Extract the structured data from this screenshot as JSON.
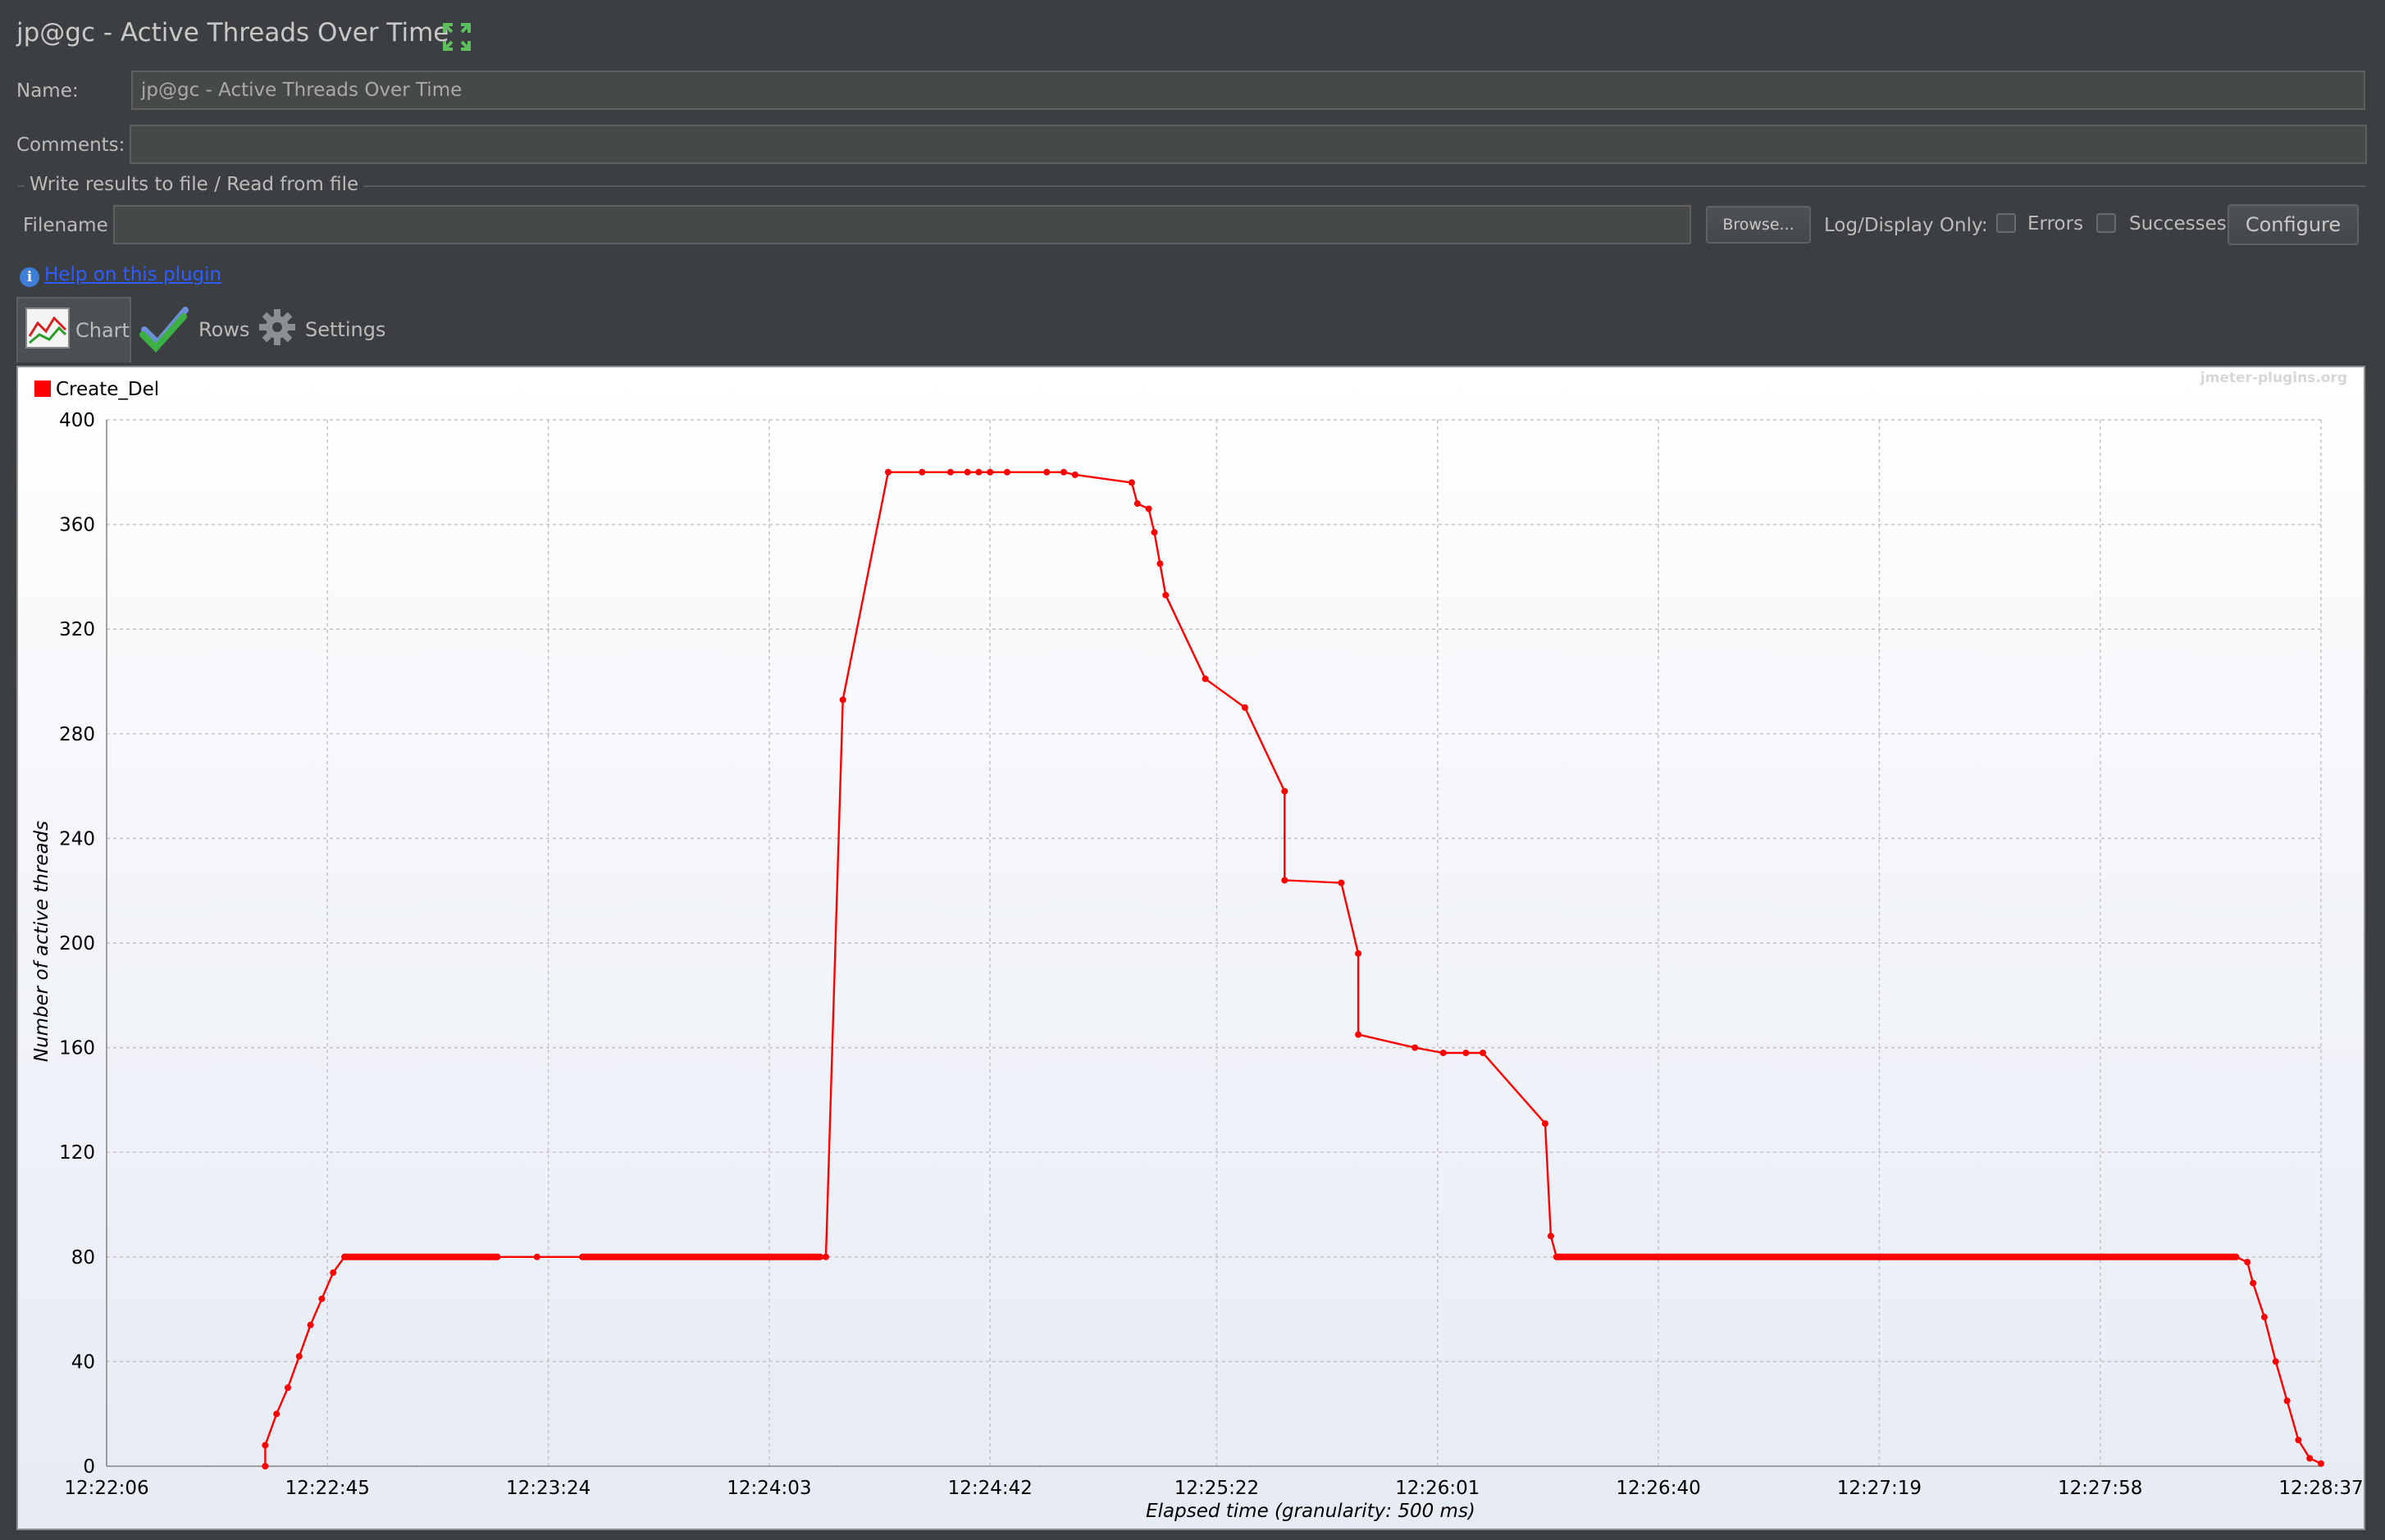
{
  "header": {
    "title": "jp@gc - Active Threads Over Time",
    "maximize_icon": "expand-arrows-icon"
  },
  "form": {
    "name_label": "Name:",
    "name_value": "jp@gc - Active Threads Over Time",
    "comments_label": "Comments:",
    "comments_value": ""
  },
  "file_section": {
    "legend": "Write results to file / Read from file",
    "filename_label": "Filename",
    "filename_value": "",
    "browse_label": "Browse...",
    "log_display_label": "Log/Display Only:",
    "errors_label": "Errors",
    "errors_checked": false,
    "successes_label": "Successes",
    "successes_checked": false,
    "configure_label": "Configure"
  },
  "help": {
    "link_text": "Help on this plugin",
    "icon": "info-icon"
  },
  "tabs": [
    {
      "label": "Chart",
      "icon": "chart-icon",
      "active": true
    },
    {
      "label": "Rows",
      "icon": "checkmarks-icon",
      "active": false
    },
    {
      "label": "Settings",
      "icon": "gear-icon",
      "active": false
    }
  ],
  "chart": {
    "watermark": "jmeter-plugins.org",
    "legend": [
      {
        "name": "Create_Del",
        "color": "#ff0000"
      }
    ],
    "x_ticks": [
      "12:22:06",
      "12:22:45",
      "12:23:24",
      "12:24:03",
      "12:24:42",
      "12:25:22",
      "12:26:01",
      "12:26:40",
      "12:27:19",
      "12:27:58",
      "12:28:37"
    ],
    "y_ticks": [
      "0",
      "40",
      "80",
      "120",
      "160",
      "200",
      "240",
      "280",
      "320",
      "360",
      "400"
    ]
  },
  "chart_data": {
    "type": "line",
    "xlabel": "Elapsed time (granularity: 500 ms)",
    "ylabel": "Number of active threads",
    "ylim": [
      0,
      400
    ],
    "xlim": [
      "12:22:06",
      "12:28:37"
    ],
    "grid": true,
    "legend_position": "top-left",
    "series": [
      {
        "name": "Create_Del",
        "color": "#ff0000",
        "points": [
          [
            "12:22:34",
            0
          ],
          [
            "12:22:34",
            8
          ],
          [
            "12:22:36",
            20
          ],
          [
            "12:22:38",
            30
          ],
          [
            "12:22:40",
            42
          ],
          [
            "12:22:42",
            54
          ],
          [
            "12:22:44",
            64
          ],
          [
            "12:22:46",
            74
          ],
          [
            "12:22:48",
            80
          ],
          [
            "12:23:15",
            80
          ],
          [
            "12:23:22",
            80
          ],
          [
            "12:23:30",
            80
          ],
          [
            "12:24:12",
            80
          ],
          [
            "12:24:13",
            80
          ],
          [
            "12:24:16",
            293
          ],
          [
            "12:24:24",
            380
          ],
          [
            "12:24:30",
            380
          ],
          [
            "12:24:35",
            380
          ],
          [
            "12:24:38",
            380
          ],
          [
            "12:24:40",
            380
          ],
          [
            "12:24:42",
            380
          ],
          [
            "12:24:45",
            380
          ],
          [
            "12:24:52",
            380
          ],
          [
            "12:24:55",
            380
          ],
          [
            "12:24:57",
            379
          ],
          [
            "12:25:07",
            376
          ],
          [
            "12:25:08",
            368
          ],
          [
            "12:25:10",
            366
          ],
          [
            "12:25:11",
            357
          ],
          [
            "12:25:12",
            345
          ],
          [
            "12:25:13",
            333
          ],
          [
            "12:25:20",
            301
          ],
          [
            "12:25:27",
            290
          ],
          [
            "12:25:34",
            258
          ],
          [
            "12:25:34",
            224
          ],
          [
            "12:25:44",
            223
          ],
          [
            "12:25:47",
            196
          ],
          [
            "12:25:47",
            165
          ],
          [
            "12:25:57",
            160
          ],
          [
            "12:26:02",
            158
          ],
          [
            "12:26:06",
            158
          ],
          [
            "12:26:09",
            158
          ],
          [
            "12:26:20",
            131
          ],
          [
            "12:26:21",
            88
          ],
          [
            "12:26:22",
            80
          ],
          [
            "12:28:22",
            80
          ],
          [
            "12:28:24",
            78
          ],
          [
            "12:28:25",
            70
          ],
          [
            "12:28:27",
            57
          ],
          [
            "12:28:29",
            40
          ],
          [
            "12:28:31",
            25
          ],
          [
            "12:28:33",
            10
          ],
          [
            "12:28:35",
            3
          ],
          [
            "12:28:37",
            1
          ]
        ]
      }
    ]
  }
}
